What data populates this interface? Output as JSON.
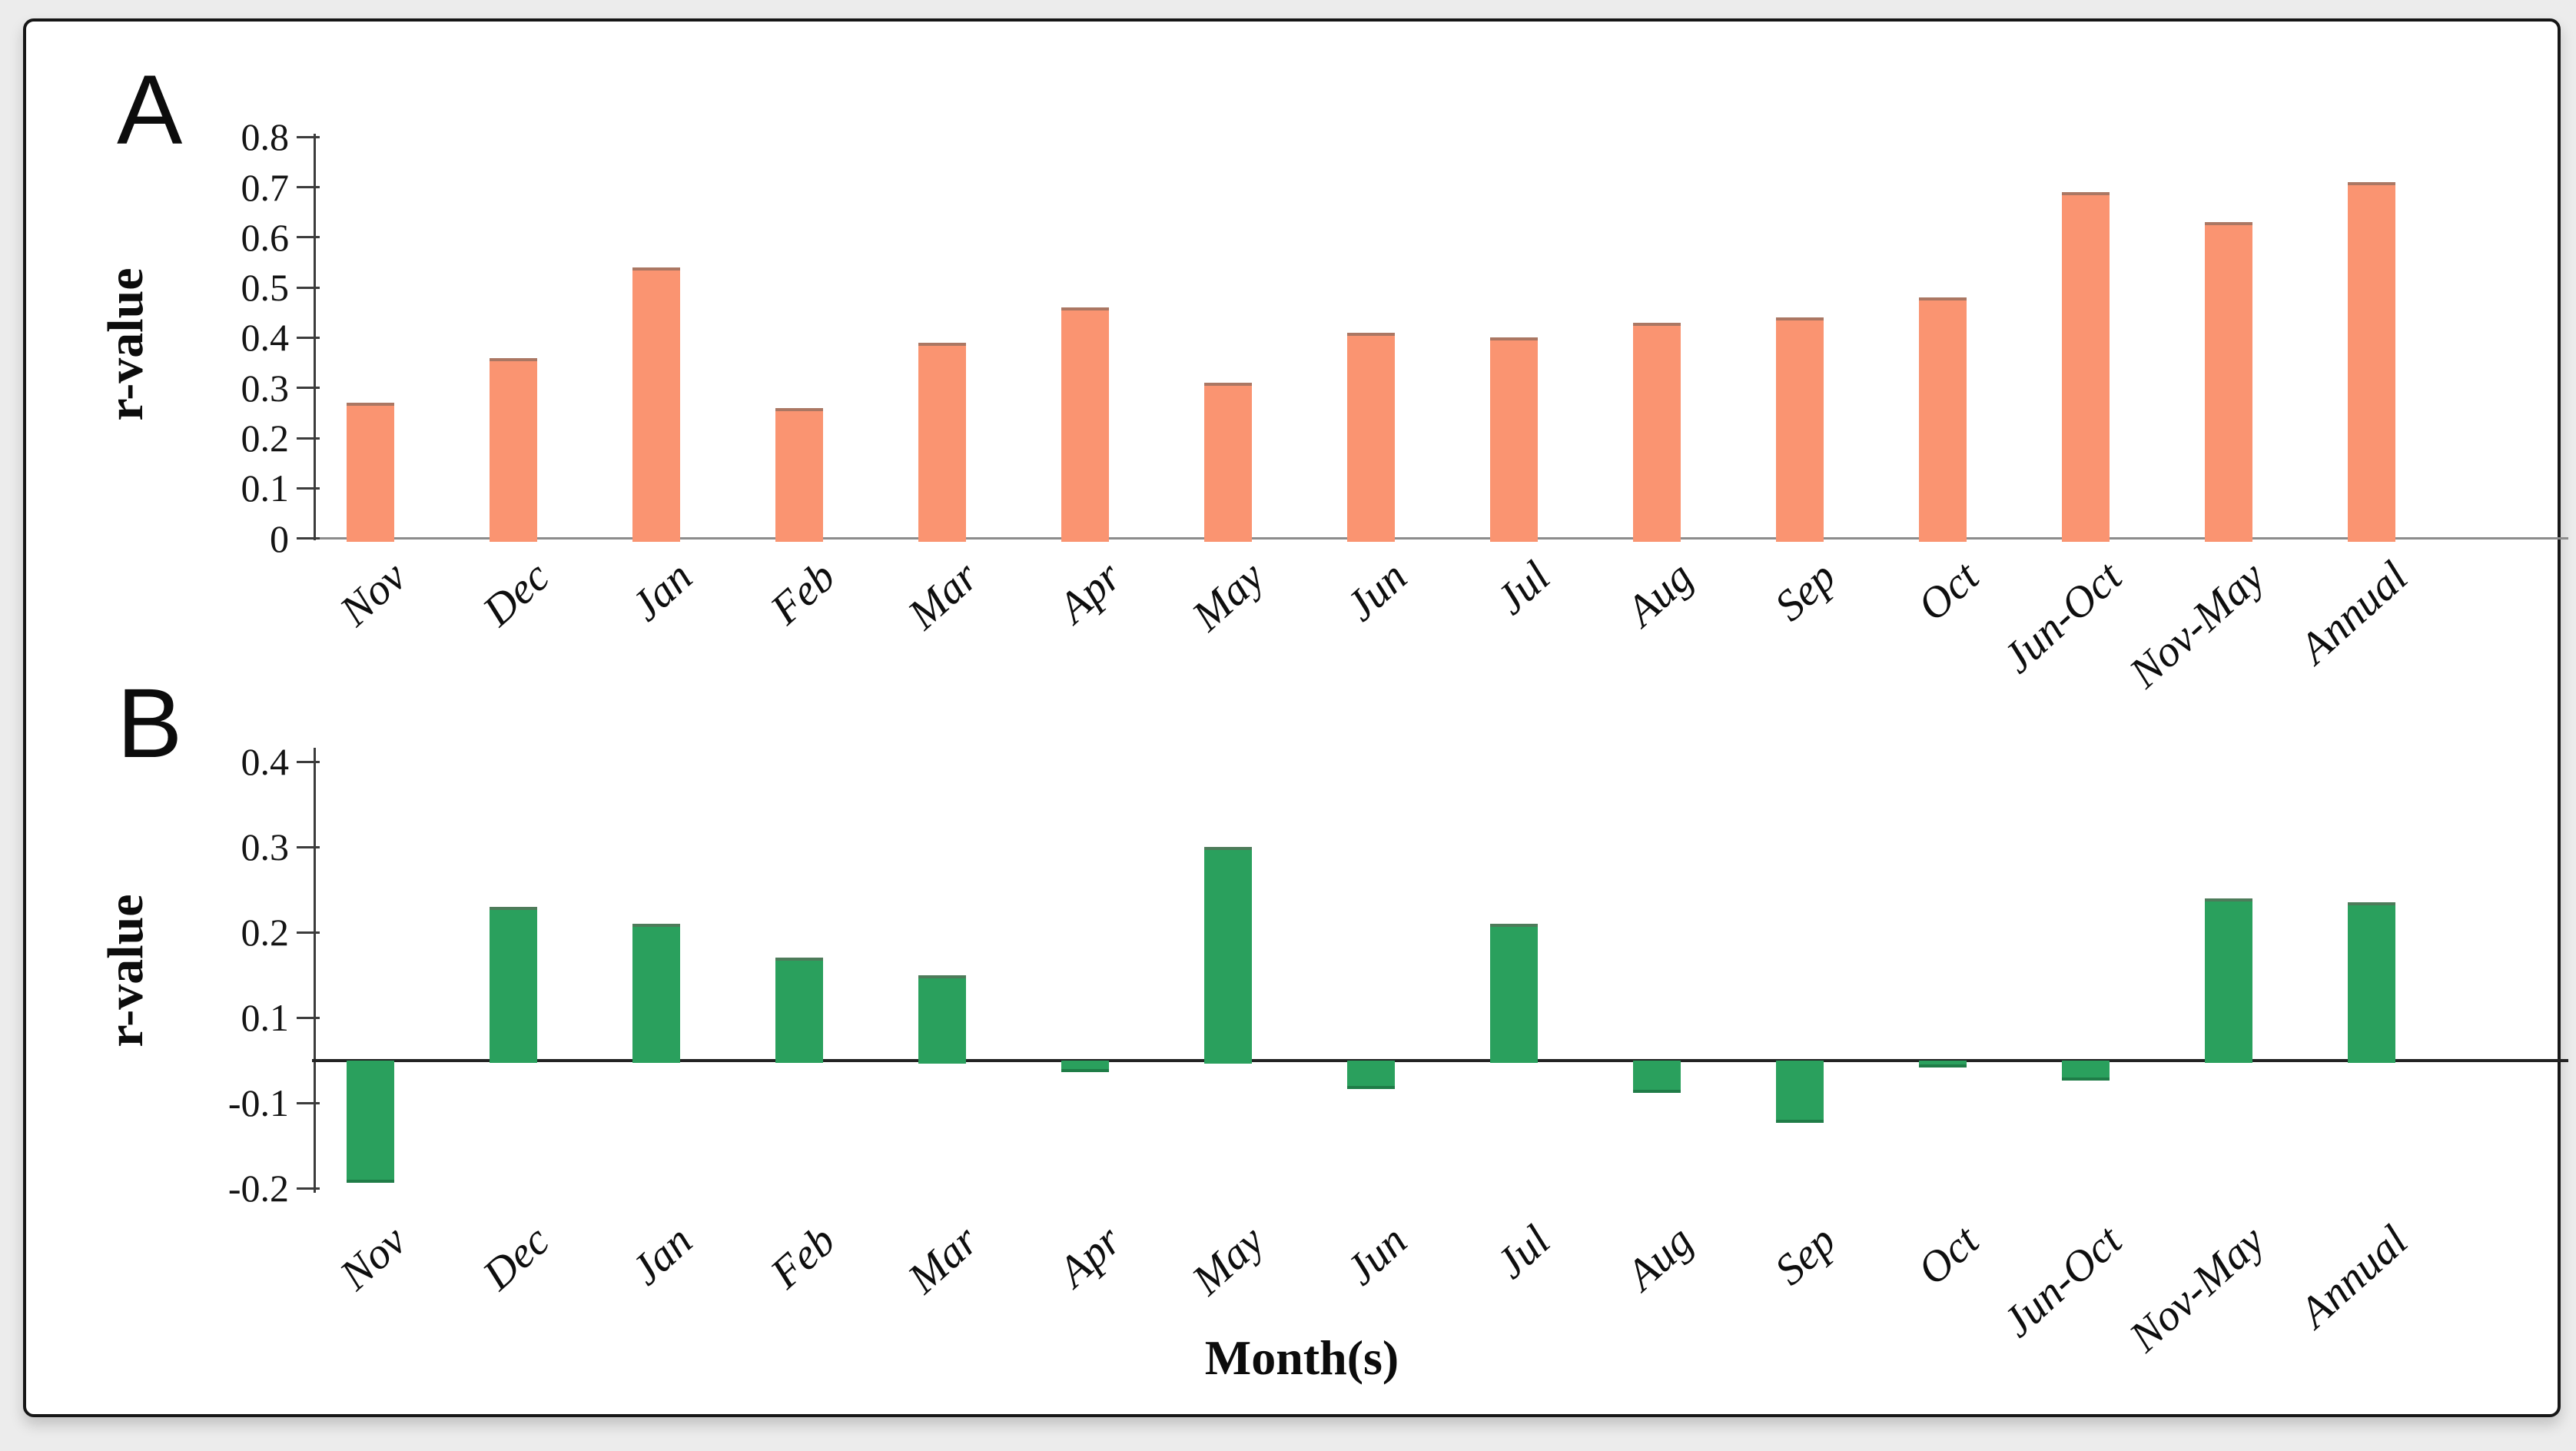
{
  "figure": {
    "background_color": "#ececec",
    "frame_color": "#161616"
  },
  "chart_data": {
    "type": "bar",
    "xlabel": "Month(s)",
    "categories": [
      "Nov",
      "Dec",
      "Jan",
      "Feb",
      "Mar",
      "Apr",
      "May",
      "Jun",
      "Jul",
      "Aug",
      "Sep",
      "Oct",
      "Jun-Oct",
      "Nov-May",
      "Annual"
    ],
    "legend": "none",
    "grid": "off",
    "panels": [
      {
        "panel_letter": "A",
        "ylabel": "r-value",
        "bar_color": "#fa9471",
        "ylim": [
          0,
          0.8
        ],
        "yticks": [
          0.8,
          0.7,
          0.6,
          0.5,
          0.4,
          0.3,
          0.2,
          0.1,
          0
        ],
        "ytick_labels": [
          "0.8",
          "0.7",
          "0.6",
          "0.5",
          "0.4",
          "0.3",
          "0.2",
          "0.1",
          "0"
        ],
        "values": [
          0.27,
          0.36,
          0.54,
          0.26,
          0.39,
          0.46,
          0.31,
          0.41,
          0.4,
          0.43,
          0.44,
          0.48,
          0.69,
          0.63,
          0.71
        ]
      },
      {
        "panel_letter": "B",
        "ylabel": "r-value",
        "bar_color": "#2aa05d",
        "ylim": [
          -0.2,
          0.4
        ],
        "yticks": [
          0.4,
          0.3,
          0.2,
          0.1,
          -0.1,
          -0.2
        ],
        "ytick_labels": [
          "0.4",
          "0.3",
          "0.2",
          "0.1",
          "-0.1",
          "-0.2"
        ],
        "axis_note": "no 0 label; zero baseline drawn midway between the 0.1 and -0.1 ticks",
        "values": [
          -0.19,
          0.23,
          0.21,
          0.17,
          0.15,
          -0.02,
          0.3,
          -0.06,
          0.21,
          -0.07,
          -0.12,
          -0.01,
          -0.04,
          0.24,
          0.235
        ]
      }
    ]
  }
}
